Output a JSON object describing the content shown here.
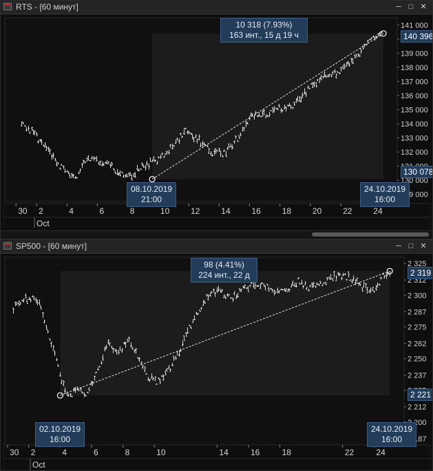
{
  "colors": {
    "background": "#0b0b0b",
    "tag": "#223c5a",
    "bars": "#d8d8d8",
    "selection": "#1c1c1c"
  },
  "charts": [
    {
      "title": "RTS - [60 минут]",
      "measure_line1": "10 318 (7.93%)",
      "measure_line2": "163 инт., 15 д 19 ч",
      "start_date": "08.10.2019",
      "start_time": "21:00",
      "end_date": "24.10.2019",
      "end_time": "16:00",
      "price_high_label": "140 396",
      "price_low_label": "130 078",
      "month_label": "Oct",
      "y_ticks": [
        "141 000",
        "140 000",
        "139 000",
        "138 000",
        "137 000",
        "136 000",
        "135 000",
        "134 000",
        "133 000",
        "132 000",
        "131 000",
        "130 000",
        "129 000"
      ],
      "x_ticks": [
        "30",
        "2",
        "4",
        "6",
        "8",
        "10",
        "12",
        "14",
        "16",
        "18",
        "20",
        "22",
        "24"
      ]
    },
    {
      "title": "SP500 - [60 минут]",
      "measure_line1": "98 (4.41%)",
      "measure_line2": "224 инт., 22 д",
      "start_date": "02.10.2019",
      "start_time": "16:00",
      "end_date": "24.10.2019",
      "end_time": "16:00",
      "price_high_label": "2 319",
      "price_low_label": "2 221",
      "month_label": "Oct",
      "y_ticks": [
        "2 325",
        "2 312",
        "2 300",
        "2 287",
        "2 275",
        "2 262",
        "2 250",
        "2 237",
        "2 225",
        "2 212",
        "2 200",
        "2 187"
      ],
      "x_ticks": [
        "30",
        "2",
        "4",
        "6",
        "8",
        "10",
        "14",
        "16",
        "18",
        "22",
        "24"
      ]
    }
  ],
  "chart_data": [
    {
      "type": "candlestick",
      "title": "RTS - [60 минут]",
      "x": [
        "30",
        "2",
        "4",
        "6",
        "8",
        "10",
        "12",
        "14",
        "16",
        "18",
        "20",
        "22",
        "24"
      ],
      "ylim": [
        128500,
        141500
      ],
      "y_ticks": [
        141000,
        140000,
        139000,
        138000,
        137000,
        136000,
        135000,
        134000,
        133000,
        132000,
        131000,
        130000,
        129000
      ],
      "measurement": {
        "change": 10318,
        "percent": 7.93,
        "from_date": "08.10.2019 21:00",
        "from_price": 130078,
        "to_date": "24.10.2019 16:00",
        "to_price": 140396
      },
      "approx_path": [
        [
          0.0,
          134200
        ],
        [
          1.1,
          132900
        ],
        [
          2.5,
          131000
        ],
        [
          3.5,
          130100
        ],
        [
          4.3,
          131600
        ],
        [
          5.8,
          131100
        ],
        [
          6.9,
          130100
        ],
        [
          8.0,
          131000
        ],
        [
          9.0,
          131500
        ],
        [
          10.0,
          132400
        ],
        [
          10.7,
          133500
        ],
        [
          11.5,
          133000
        ],
        [
          12.4,
          132000
        ],
        [
          13.3,
          131900
        ],
        [
          14.2,
          133000
        ],
        [
          15.0,
          134500
        ],
        [
          16.2,
          134800
        ],
        [
          17.0,
          135100
        ],
        [
          17.8,
          135300
        ],
        [
          19.0,
          136600
        ],
        [
          20.0,
          137500
        ],
        [
          20.8,
          137600
        ],
        [
          22.0,
          138700
        ],
        [
          23.1,
          140000
        ],
        [
          23.7,
          140400
        ]
      ]
    },
    {
      "type": "candlestick",
      "title": "SP500 - [60 минут]",
      "x": [
        "30",
        "2",
        "4",
        "6",
        "8",
        "10",
        "14",
        "16",
        "18",
        "22",
        "24"
      ],
      "ylim": [
        2182,
        2330
      ],
      "y_ticks": [
        2325,
        2312,
        2300,
        2287,
        2275,
        2262,
        2250,
        2237,
        2225,
        2212,
        2200,
        2187
      ],
      "measurement": {
        "change": 98,
        "percent": 4.41,
        "from_date": "02.10.2019 16:00",
        "from_price": 2221,
        "to_date": "24.10.2019 16:00",
        "to_price": 2319
      },
      "approx_path": [
        [
          0.0,
          2290
        ],
        [
          0.6,
          2296
        ],
        [
          1.0,
          2298
        ],
        [
          1.6,
          2295
        ],
        [
          2.1,
          2273
        ],
        [
          2.6,
          2258
        ],
        [
          3.1,
          2232
        ],
        [
          3.5,
          2219
        ],
        [
          4.0,
          2226
        ],
        [
          4.6,
          2222
        ],
        [
          5.3,
          2238
        ],
        [
          6.0,
          2263
        ],
        [
          6.7,
          2255
        ],
        [
          7.4,
          2265
        ],
        [
          8.1,
          2246
        ],
        [
          8.6,
          2236
        ],
        [
          9.2,
          2232
        ],
        [
          10.0,
          2243
        ],
        [
          10.8,
          2262
        ],
        [
          11.5,
          2282
        ],
        [
          12.2,
          2296
        ],
        [
          13.0,
          2304
        ],
        [
          13.9,
          2297
        ],
        [
          14.7,
          2306
        ],
        [
          15.6,
          2310
        ],
        [
          16.4,
          2305
        ],
        [
          17.3,
          2303
        ],
        [
          18.1,
          2311
        ],
        [
          18.9,
          2306
        ],
        [
          19.8,
          2310
        ],
        [
          20.6,
          2315
        ],
        [
          21.5,
          2314
        ],
        [
          22.3,
          2306
        ],
        [
          22.9,
          2303
        ],
        [
          23.5,
          2314
        ],
        [
          24.0,
          2319
        ]
      ]
    }
  ]
}
